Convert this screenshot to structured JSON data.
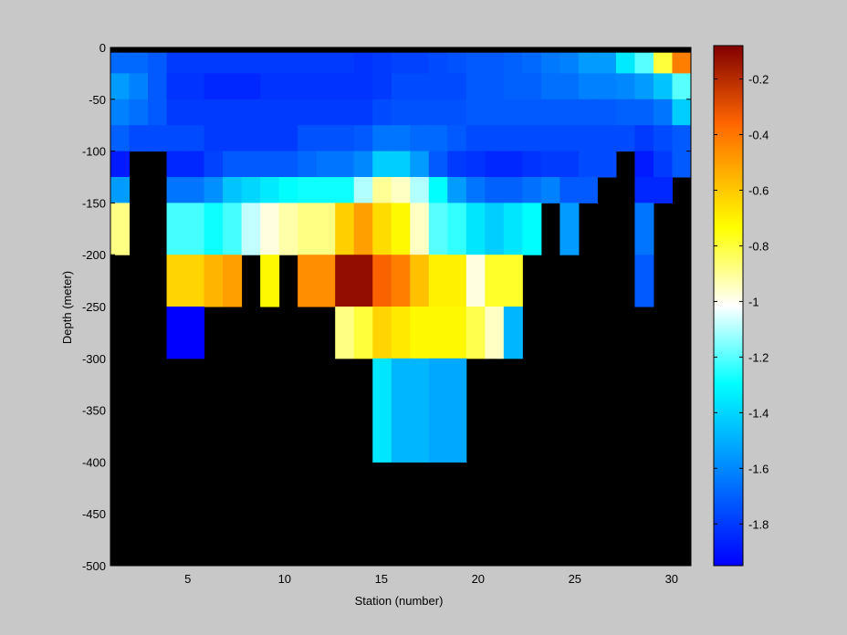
{
  "chart_data": {
    "type": "heatmap",
    "xlabel": "Station (number)",
    "ylabel": "Depth (meter)",
    "xlim": [
      1,
      31
    ],
    "ylim": [
      -500,
      0
    ],
    "xticks": [
      "5",
      "10",
      "15",
      "20",
      "25",
      "30"
    ],
    "yticks": [
      "0",
      "-50",
      "-100",
      "-150",
      "-200",
      "-250",
      "-300",
      "-350",
      "-400",
      "-450",
      "-500"
    ],
    "clim": [
      -1.95,
      -0.08
    ],
    "colorbar_ticks": [
      "-0.2",
      "-0.4",
      "-0.6",
      "-0.8",
      "-1",
      "-1.2",
      "-1.4",
      "-1.6",
      "-1.8"
    ],
    "colormap": "jet",
    "nodata_color": "#000000",
    "depth_rows": [
      {
        "top": -5,
        "bottom": -25,
        "values": [
          -1.68,
          -1.68,
          -1.72,
          -1.8,
          -1.8,
          -1.8,
          -1.8,
          -1.8,
          -1.8,
          -1.8,
          -1.8,
          -1.8,
          -1.8,
          -1.82,
          -1.8,
          -1.78,
          -1.78,
          -1.76,
          -1.74,
          -1.72,
          -1.72,
          -1.7,
          -1.68,
          -1.64,
          -1.62,
          -1.55,
          -1.55,
          -1.35,
          -1.2,
          -0.8,
          -0.42
        ]
      },
      {
        "top": -25,
        "bottom": -50,
        "values": [
          -1.55,
          -1.62,
          -1.72,
          -1.82,
          -1.82,
          -1.85,
          -1.85,
          -1.85,
          -1.82,
          -1.82,
          -1.82,
          -1.82,
          -1.82,
          -1.82,
          -1.8,
          -1.76,
          -1.76,
          -1.76,
          -1.76,
          -1.72,
          -1.72,
          -1.7,
          -1.7,
          -1.66,
          -1.66,
          -1.62,
          -1.62,
          -1.6,
          -1.55,
          -1.45,
          -1.2
        ]
      },
      {
        "top": -50,
        "bottom": -75,
        "values": [
          -1.62,
          -1.66,
          -1.72,
          -1.8,
          -1.8,
          -1.8,
          -1.8,
          -1.8,
          -1.8,
          -1.8,
          -1.8,
          -1.8,
          -1.8,
          -1.8,
          -1.76,
          -1.74,
          -1.74,
          -1.74,
          -1.74,
          -1.72,
          -1.72,
          -1.72,
          -1.72,
          -1.72,
          -1.72,
          -1.72,
          -1.72,
          -1.7,
          -1.7,
          -1.65,
          -1.42
        ]
      },
      {
        "top": -75,
        "bottom": -100,
        "values": [
          -1.7,
          -1.76,
          -1.76,
          -1.76,
          -1.76,
          -1.8,
          -1.8,
          -1.8,
          -1.8,
          -1.8,
          -1.74,
          -1.74,
          -1.74,
          -1.72,
          -1.65,
          -1.65,
          -1.68,
          -1.68,
          -1.72,
          -1.76,
          -1.76,
          -1.76,
          -1.76,
          -1.76,
          -1.76,
          -1.76,
          -1.76,
          -1.76,
          -1.8,
          -1.76,
          -1.72
        ]
      },
      {
        "top": -100,
        "bottom": -125,
        "values": [
          -1.88,
          null,
          null,
          -1.85,
          -1.85,
          -1.78,
          -1.72,
          -1.72,
          -1.72,
          -1.72,
          -1.68,
          -1.65,
          -1.65,
          -1.6,
          -1.42,
          -1.42,
          -1.55,
          -1.72,
          -1.8,
          -1.82,
          -1.85,
          -1.85,
          -1.82,
          -1.8,
          -1.8,
          -1.76,
          -1.76,
          null,
          -1.88,
          -1.8,
          -1.72
        ]
      },
      {
        "top": -125,
        "bottom": -150,
        "values": [
          -1.55,
          null,
          null,
          -1.65,
          -1.65,
          -1.58,
          -1.45,
          -1.4,
          -1.35,
          -1.3,
          -1.28,
          -1.28,
          -1.28,
          -1.1,
          -0.9,
          -0.95,
          -1.1,
          -1.3,
          -1.55,
          -1.65,
          -1.7,
          -1.7,
          -1.66,
          -1.62,
          -1.72,
          -1.72,
          null,
          null,
          -1.85,
          -1.85,
          null
        ]
      },
      {
        "top": -150,
        "bottom": -200,
        "values": [
          -0.88,
          null,
          null,
          -1.22,
          -1.22,
          -1.28,
          -1.22,
          -1.08,
          -0.98,
          -0.92,
          -0.88,
          -0.88,
          -0.62,
          -0.5,
          -0.65,
          -0.72,
          -0.95,
          -1.2,
          -1.24,
          -1.36,
          -1.42,
          -1.36,
          -1.3,
          null,
          -1.55,
          null,
          null,
          null,
          -1.65,
          null,
          null
        ]
      },
      {
        "top": -200,
        "bottom": -250,
        "values": [
          null,
          null,
          null,
          -0.63,
          -0.63,
          -0.55,
          -0.5,
          null,
          -0.72,
          null,
          -0.46,
          -0.46,
          -0.12,
          -0.12,
          -0.35,
          -0.42,
          -0.58,
          -0.7,
          -0.7,
          -0.98,
          -0.78,
          -0.78,
          null,
          null,
          null,
          null,
          null,
          null,
          -1.72,
          null,
          null
        ]
      },
      {
        "top": -250,
        "bottom": -300,
        "values": [
          null,
          null,
          null,
          -1.95,
          -1.95,
          null,
          null,
          null,
          null,
          null,
          null,
          null,
          -0.88,
          -0.8,
          -0.63,
          -0.68,
          -0.72,
          -0.72,
          -0.72,
          -0.82,
          -0.95,
          -1.48,
          null,
          null,
          null,
          null,
          null,
          null,
          null,
          null,
          null
        ]
      },
      {
        "top": -300,
        "bottom": -400,
        "values": [
          null,
          null,
          null,
          null,
          null,
          null,
          null,
          null,
          null,
          null,
          null,
          null,
          null,
          null,
          -1.36,
          -1.48,
          -1.48,
          -1.52,
          -1.52,
          null,
          null,
          null,
          null,
          null,
          null,
          null,
          null,
          null,
          null,
          null,
          null
        ]
      },
      {
        "top": -400,
        "bottom": -500,
        "values": [
          null,
          null,
          null,
          null,
          null,
          null,
          null,
          null,
          null,
          null,
          null,
          null,
          null,
          null,
          null,
          null,
          null,
          null,
          null,
          null,
          null,
          null,
          null,
          null,
          null,
          null,
          null,
          null,
          null,
          null,
          null
        ]
      }
    ]
  }
}
